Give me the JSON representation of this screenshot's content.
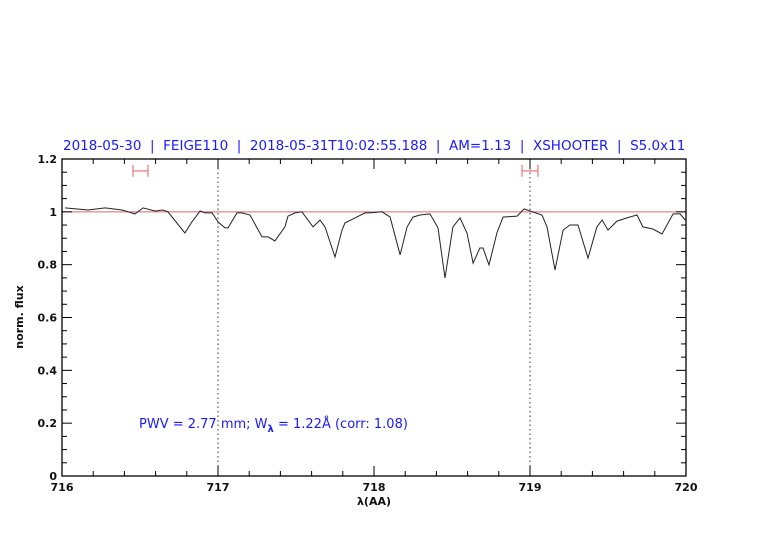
{
  "chart_data": {
    "type": "line",
    "title": "2018-05-30  |  FEIGE110  |  2018-05-31T10:02:55.188  |  AM=1.13  |  XSHOOTER  |  S5.0x11",
    "xlabel": "λ(AA)",
    "ylabel": "norm. flux",
    "xlim": [
      716,
      720
    ],
    "ylim": [
      0,
      1.2
    ],
    "xticks": [
      716,
      717,
      718,
      719,
      720
    ],
    "xtick_labels": [
      "716",
      "717",
      "718",
      "719",
      "720"
    ],
    "x_minor_step": 0.2,
    "yticks": [
      0,
      0.2,
      0.4,
      0.6,
      0.8,
      1,
      1.2
    ],
    "ytick_labels": [
      "0",
      "0.2",
      "0.4",
      "0.6",
      "0.8",
      "1",
      "1.2"
    ],
    "y_minor_step": 0.05,
    "grid": false,
    "reference_line_y": 1,
    "vertical_dotted_lines": [
      717,
      719
    ],
    "range_markers": [
      {
        "x": [
          716.455,
          716.551
        ],
        "y": 1.155
      },
      {
        "x": [
          718.949,
          719.051
        ],
        "y": 1.155
      }
    ],
    "annotation": {
      "part1": "PWV = 2.77 mm; W",
      "subscript": "λ",
      "part2": " = 1.22Å (corr: 1.08)"
    },
    "series": [
      {
        "x": [
          716.019,
          716.167,
          716.276,
          716.385,
          716.468,
          716.519,
          716.596,
          716.647,
          716.679,
          716.788,
          716.833,
          716.885,
          716.917,
          716.962,
          717.0,
          717.045,
          717.064,
          717.122,
          717.154,
          717.205,
          717.282,
          717.321,
          717.365,
          717.429,
          717.449,
          717.494,
          717.538,
          717.609,
          717.654,
          717.686,
          717.75,
          717.795,
          717.814,
          717.878,
          717.942,
          717.974,
          718.051,
          718.103,
          718.167,
          718.212,
          718.25,
          718.295,
          718.359,
          718.41,
          718.455,
          718.506,
          718.551,
          718.596,
          718.635,
          718.679,
          718.699,
          718.737,
          718.788,
          718.827,
          718.917,
          718.962,
          719.0,
          719.077,
          719.109,
          719.16,
          719.212,
          719.256,
          719.308,
          719.372,
          719.429,
          719.462,
          719.5,
          719.558,
          719.622,
          719.686,
          719.724,
          719.788,
          719.846,
          719.917,
          719.962,
          719.994
        ],
        "y": [
          1.015,
          1.007,
          1.015,
          1.007,
          0.992,
          1.015,
          1.003,
          1.007,
          1.0,
          0.92,
          0.962,
          1.003,
          0.996,
          0.996,
          0.962,
          0.939,
          0.939,
          0.996,
          0.996,
          0.988,
          0.905,
          0.905,
          0.89,
          0.943,
          0.984,
          0.996,
          1.0,
          0.943,
          0.969,
          0.943,
          0.829,
          0.931,
          0.958,
          0.977,
          0.996,
          0.996,
          1.0,
          0.98,
          0.837,
          0.943,
          0.98,
          0.988,
          0.992,
          0.939,
          0.75,
          0.943,
          0.977,
          0.92,
          0.806,
          0.863,
          0.863,
          0.799,
          0.92,
          0.98,
          0.984,
          1.011,
          1.003,
          0.988,
          0.943,
          0.78,
          0.931,
          0.95,
          0.95,
          0.825,
          0.943,
          0.969,
          0.931,
          0.965,
          0.977,
          0.988,
          0.943,
          0.935,
          0.916,
          0.992,
          0.992,
          0.969
        ]
      }
    ],
    "colors": {
      "spectrum": "#222222",
      "reference": "#d86a6a",
      "markers": "#f07878",
      "text": "#1a1aff"
    }
  }
}
